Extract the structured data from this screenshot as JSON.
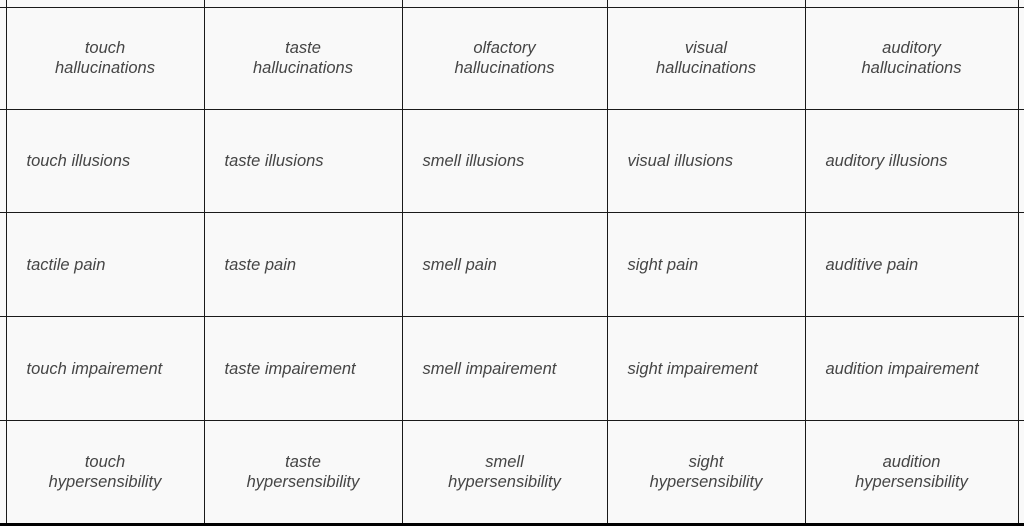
{
  "table": {
    "rows": [
      {
        "align": "center",
        "cells": [
          "touch\nhallucinations",
          "taste\nhallucinations",
          "olfactory\nhallucinations",
          "visual\nhallucinations",
          "auditory\nhallucinations"
        ]
      },
      {
        "align": "left",
        "cells": [
          "touch illusions",
          "taste illusions",
          "smell illusions",
          "visual illusions",
          "auditory illusions"
        ]
      },
      {
        "align": "left",
        "cells": [
          "tactile pain",
          "taste pain",
          "smell pain",
          "sight pain",
          "auditive pain"
        ]
      },
      {
        "align": "left",
        "cells": [
          "touch impairement",
          "taste impairement",
          "smell impairement",
          "sight impairement",
          "audition impairement"
        ]
      },
      {
        "align": "center",
        "cells": [
          "touch\nhypersensibility",
          "taste\nhypersensibility",
          "smell\nhypersensibility",
          "sight\nhypersensibility",
          "audition\nhypersensibility"
        ]
      }
    ]
  }
}
